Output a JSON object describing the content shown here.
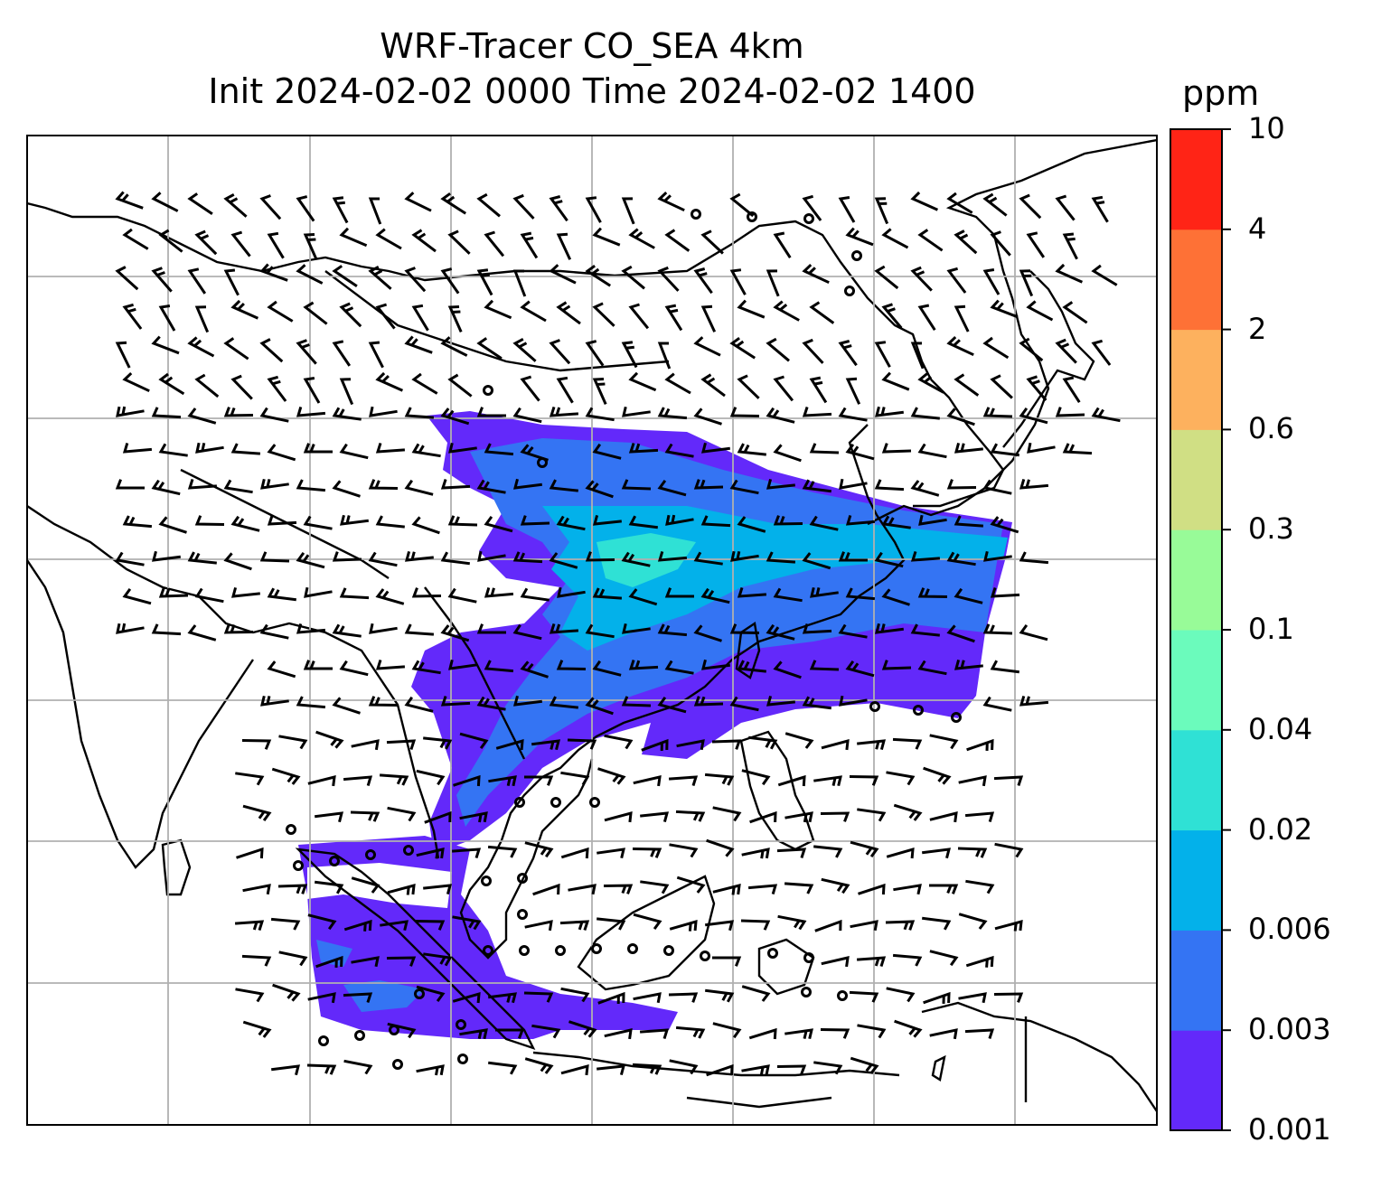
{
  "title": {
    "line1": "WRF-Tracer CO_SEA 4km",
    "line2": "Init 2024-02-02 0000 Time 2024-02-02 1400"
  },
  "colorbar": {
    "unit": "ppm",
    "ticks": [
      "0.001",
      "0.003",
      "0.006",
      "0.02",
      "0.04",
      "0.1",
      "0.3",
      "0.6",
      "2",
      "4",
      "10"
    ],
    "colors": [
      "#6329fa",
      "#3474f3",
      "#03b1ea",
      "#2fe1d5",
      "#6bfbbc",
      "#98fb98",
      "#d0df84",
      "#fdb15e",
      "#fe7136",
      "#ff2416"
    ]
  },
  "map": {
    "tracer": "CO_SEA",
    "resolution": "4km",
    "overlays": [
      "coastlines",
      "country-borders",
      "gridlines",
      "wind-barbs",
      "calm-wind-circles"
    ]
  }
}
